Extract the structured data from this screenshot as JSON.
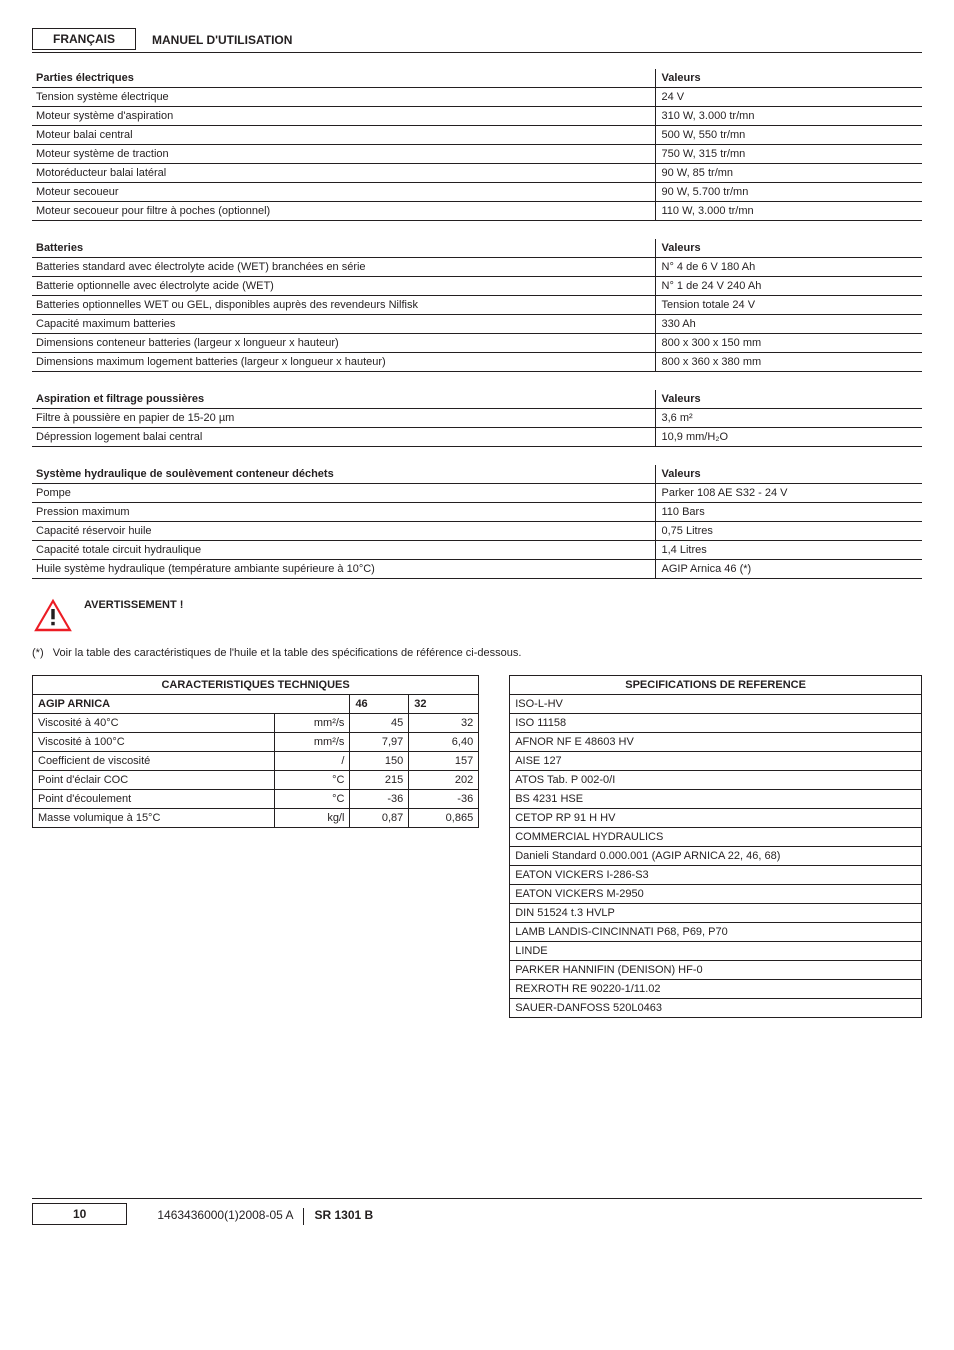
{
  "header": {
    "language": "FRANÇAIS",
    "manual_title": "MANUEL D'UTILISATION"
  },
  "tables": {
    "electriques": {
      "title": "Parties électriques",
      "valeurs_label": "Valeurs",
      "rows": [
        {
          "k": "Tension système électrique",
          "v": "24 V"
        },
        {
          "k": "Moteur système d'aspiration",
          "v": "310 W, 3.000 tr/mn"
        },
        {
          "k": "Moteur balai central",
          "v": "500 W, 550 tr/mn"
        },
        {
          "k": "Moteur système de traction",
          "v": "750 W, 315 tr/mn"
        },
        {
          "k": "Motoréducteur balai latéral",
          "v": "90 W, 85 tr/mn"
        },
        {
          "k": "Moteur secoueur",
          "v": "90 W, 5.700 tr/mn"
        },
        {
          "k": "Moteur secoueur pour filtre à poches (optionnel)",
          "v": "110 W, 3.000 tr/mn"
        }
      ]
    },
    "batteries": {
      "title": "Batteries",
      "valeurs_label": "Valeurs",
      "rows": [
        {
          "k": "Batteries standard avec électrolyte acide (WET) branchées en série",
          "v": "N° 4 de 6 V 180 Ah"
        },
        {
          "k": "Batterie optionnelle avec électrolyte acide (WET)",
          "v": "N° 1 de 24 V 240 Ah"
        },
        {
          "k": "Batteries optionnelles WET ou GEL, disponibles auprès des revendeurs Nilfisk",
          "v": "Tension totale 24 V"
        },
        {
          "k": "Capacité maximum batteries",
          "v": "330 Ah"
        },
        {
          "k": "Dimensions conteneur batteries (largeur x longueur x hauteur)",
          "v": "800 x 300 x 150 mm"
        },
        {
          "k": "Dimensions maximum logement batteries (largeur x longueur x hauteur)",
          "v": "800 x 360 x 380 mm"
        }
      ]
    },
    "aspiration": {
      "title": "Aspiration et filtrage poussières",
      "valeurs_label": "Valeurs",
      "rows": [
        {
          "k": "Filtre à poussière en papier de 15-20 µm",
          "v": "3,6 m²"
        },
        {
          "k": "Dépression logement balai central",
          "v": "10,9 mm/H₂O"
        }
      ]
    },
    "hydraulique": {
      "title": "Système hydraulique de soulèvement conteneur déchets",
      "valeurs_label": "Valeurs",
      "rows": [
        {
          "k": "Pompe",
          "v": "Parker 108 AE S32 - 24 V"
        },
        {
          "k": "Pression maximum",
          "v": "110 Bars"
        },
        {
          "k": "Capacité réservoir huile",
          "v": "0,75 Litres"
        },
        {
          "k": "Capacité totale circuit hydraulique",
          "v": "1,4 Litres"
        },
        {
          "k": "Huile système hydraulique (température ambiante supérieure à 10°C)",
          "v": "AGIP Arnica 46 (*)"
        }
      ]
    }
  },
  "warning_label": "AVERTISSEMENT !",
  "note_prefix": "(*)",
  "note_text": "Voir la table des caractéristiques de l'huile et la table des spécifications de référence ci-dessous.",
  "carac": {
    "header": "CARACTERISTIQUES TECHNIQUES",
    "product": "AGIP ARNICA",
    "col46": "46",
    "col32": "32",
    "rows": [
      {
        "label": "Viscosité à 40°C",
        "unit": "mm²/s",
        "v46": "45",
        "v32": "32"
      },
      {
        "label": "Viscosité à 100°C",
        "unit": "mm²/s",
        "v46": "7,97",
        "v32": "6,40"
      },
      {
        "label": "Coefficient de viscosité",
        "unit": "/",
        "v46": "150",
        "v32": "157"
      },
      {
        "label": "Point d'éclair COC",
        "unit": "°C",
        "v46": "215",
        "v32": "202"
      },
      {
        "label": "Point d'écoulement",
        "unit": "°C",
        "v46": "-36",
        "v32": "-36"
      },
      {
        "label": "Masse volumique à 15°C",
        "unit": "kg/l",
        "v46": "0,87",
        "v32": "0,865"
      }
    ]
  },
  "reference": {
    "header": "SPECIFICATIONS DE REFERENCE",
    "rows": [
      "ISO-L-HV",
      "ISO 11158",
      "AFNOR NF E 48603 HV",
      "AISE 127",
      "ATOS Tab. P 002-0/I",
      "BS 4231 HSE",
      "CETOP RP 91 H HV",
      "COMMERCIAL HYDRAULICS",
      "Danieli Standard 0.000.001 (AGIP ARNICA 22, 46, 68)",
      "EATON VICKERS I-286-S3",
      "EATON VICKERS M-2950",
      "DIN 51524 t.3 HVLP",
      "LAMB LANDIS-CINCINNATI P68, P69, P70",
      "LINDE",
      "PARKER HANNIFIN (DENISON) HF-0",
      "REXROTH RE 90220-1/11.02",
      "SAUER-DANFOSS 520L0463"
    ]
  },
  "footer": {
    "page": "10",
    "doc_code": "1463436000(1)2008-05 A",
    "model": "SR 1301 B"
  },
  "colors": {
    "warn_red": "#ec1c24",
    "text": "#231f20"
  }
}
